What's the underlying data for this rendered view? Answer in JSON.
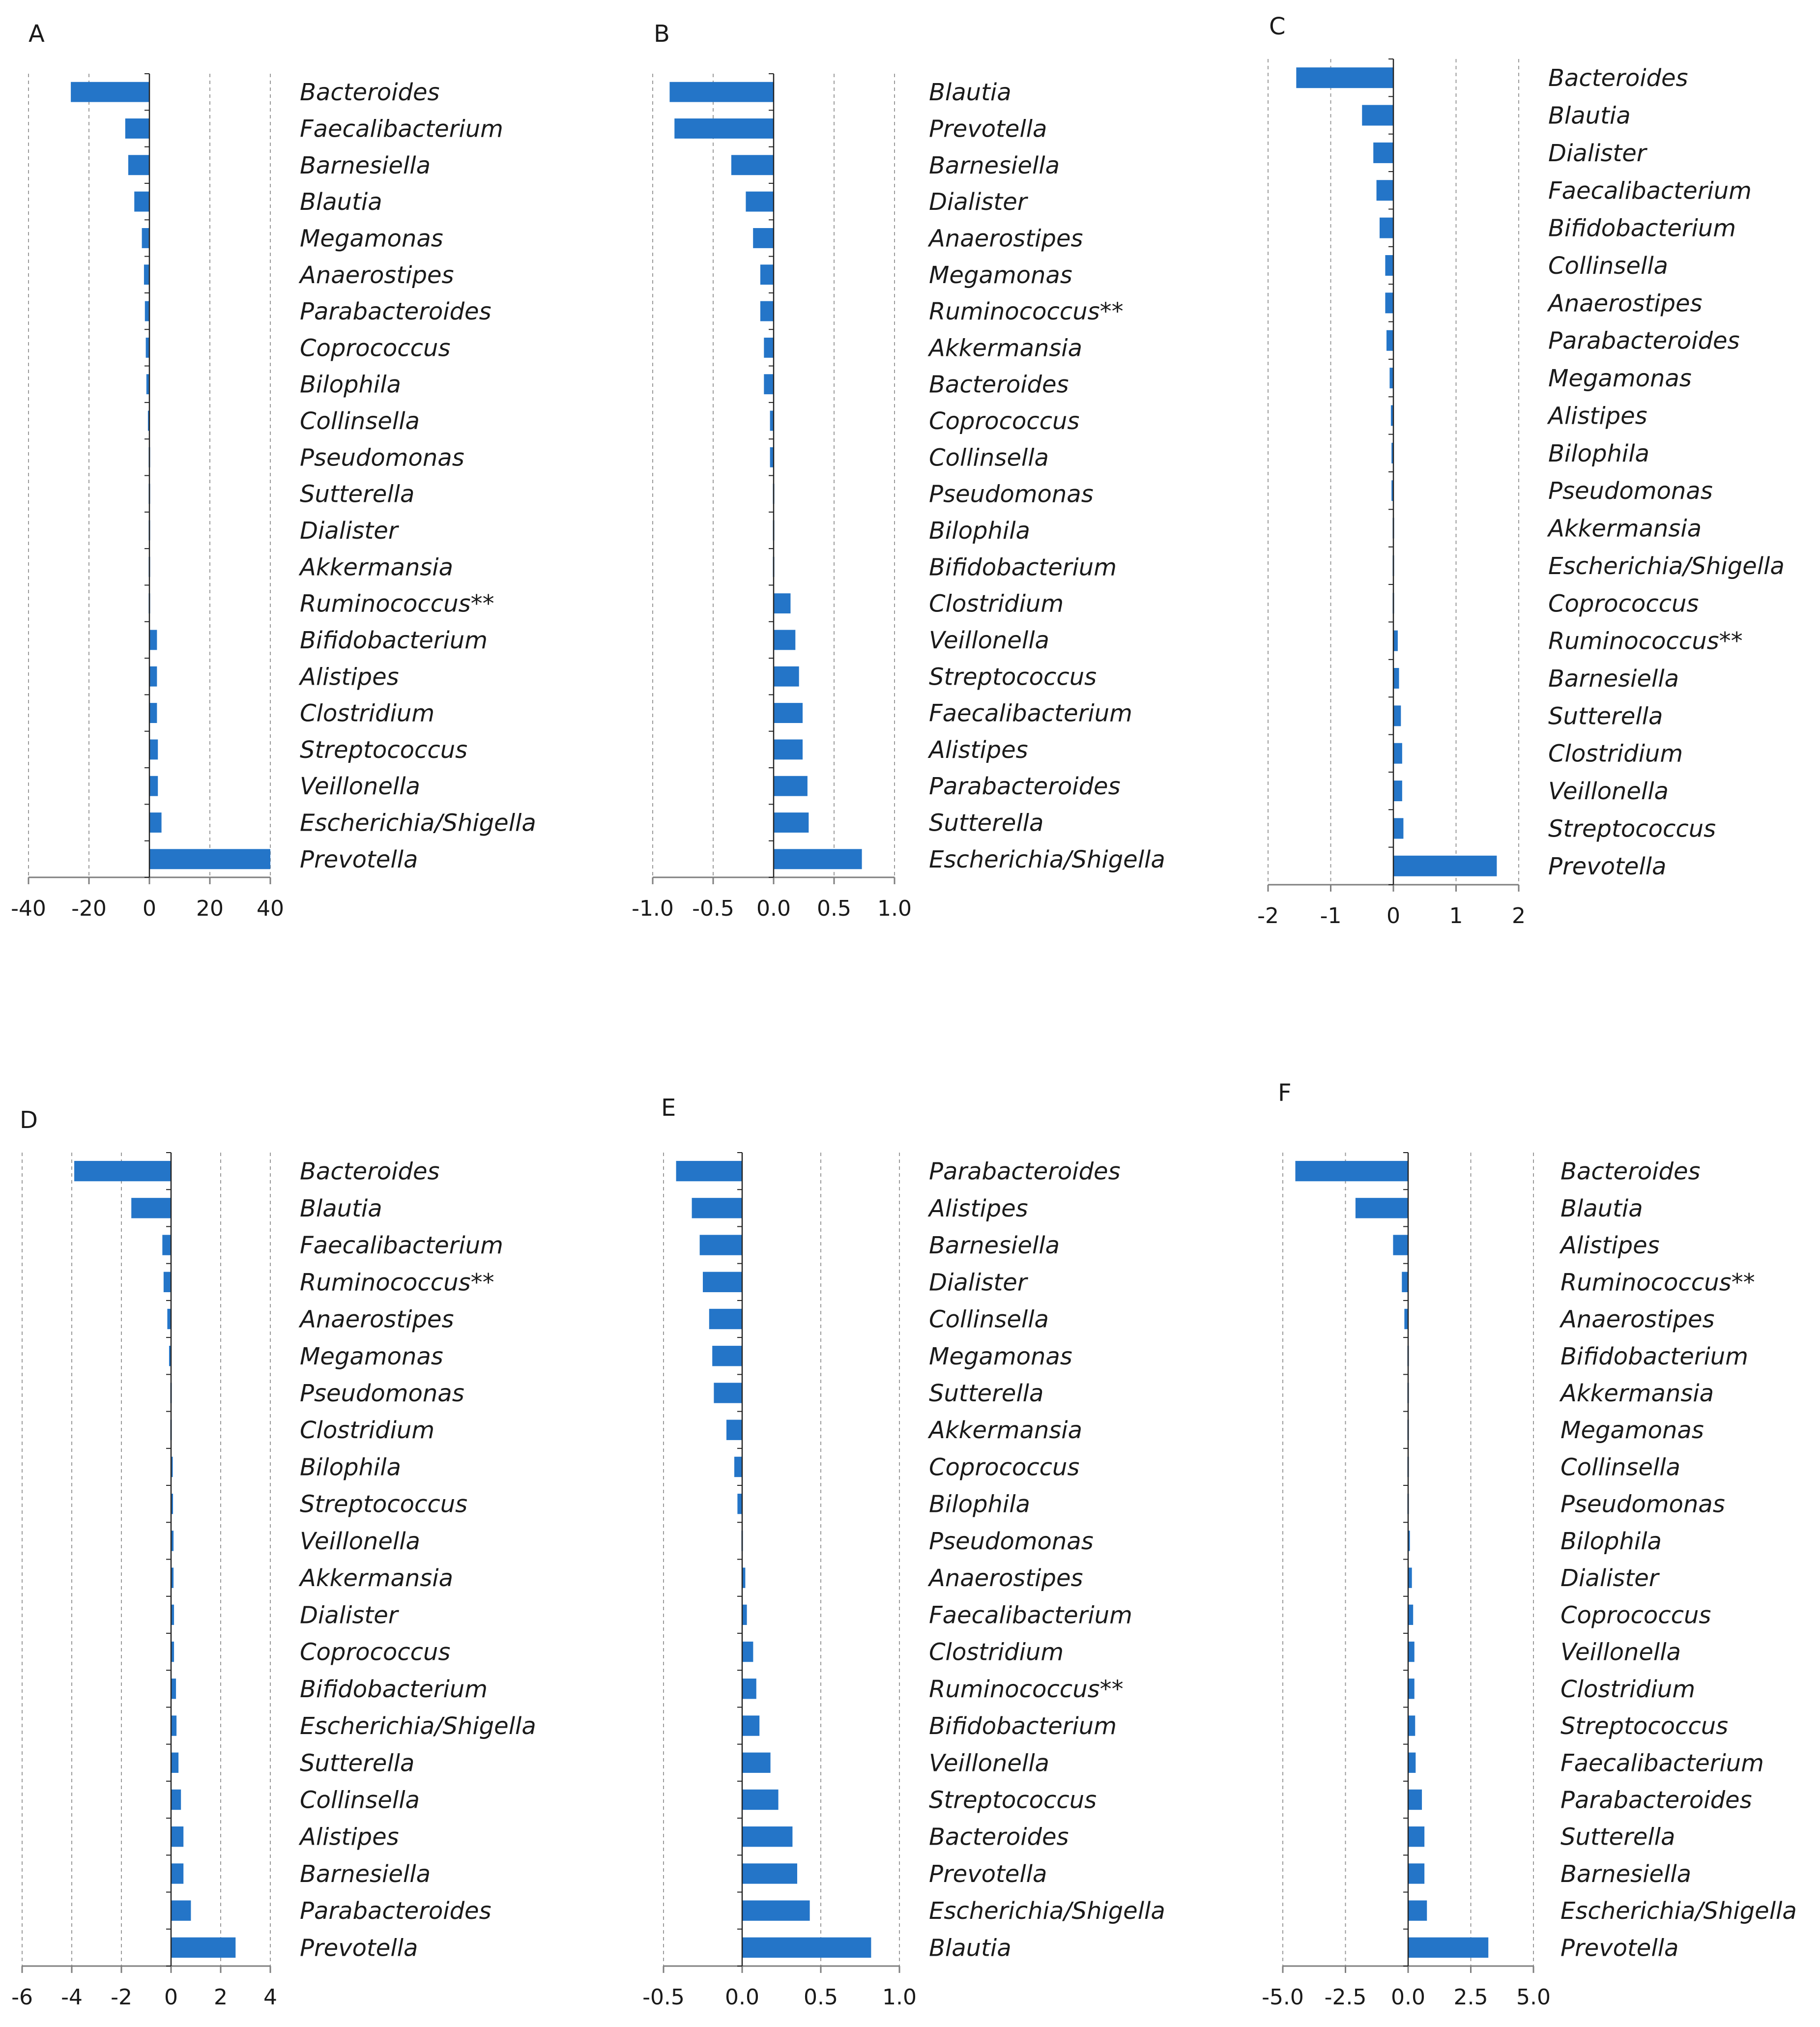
{
  "chart_data": [
    {
      "type": "bar",
      "panel": "A",
      "xlim": [
        -40,
        40
      ],
      "ticks": [
        -40,
        -20,
        0,
        20,
        40
      ],
      "tick_labels": [
        "-40",
        "-20",
        "0",
        "20",
        "40"
      ],
      "grid": true,
      "categories": [
        "Bacteroides",
        "Faecalibacterium",
        "Barnesiella",
        "Blautia",
        "Megamonas",
        "Anaerostipes",
        "Parabacteroides",
        "Coprococcus",
        "Bilophila",
        "Collinsella",
        "Pseudomonas",
        "Sutterella",
        "Dialister",
        "Akkermansia",
        "Ruminococcus**",
        "Bifidobacterium",
        "Alistipes",
        "Clostridium",
        "Streptococcus",
        "Veillonella",
        "Escherichia/Shigella",
        "Prevotella"
      ],
      "values": [
        -26,
        -8,
        -7,
        -5,
        -2.5,
        -1.8,
        -1.5,
        -1.2,
        -1.0,
        -0.5,
        0,
        0,
        0,
        0,
        0,
        2.5,
        2.5,
        2.5,
        2.8,
        2.8,
        4.0,
        40
      ]
    },
    {
      "type": "bar",
      "panel": "B",
      "xlim": [
        -1.0,
        1.0
      ],
      "ticks": [
        -1.0,
        -0.5,
        0.0,
        0.5,
        1.0
      ],
      "tick_labels": [
        "-1.0",
        "-0.5",
        "0.0",
        "0.5",
        "1.0"
      ],
      "grid": true,
      "categories": [
        "Blautia",
        "Prevotella",
        "Barnesiella",
        "Dialister",
        "Anaerostipes",
        "Megamonas",
        "Ruminococcus**",
        "Akkermansia",
        "Bacteroides",
        "Coprococcus",
        "Collinsella",
        "Pseudomonas",
        "Bilophila",
        "Bifidobacterium",
        "Clostridium",
        "Veillonella",
        "Streptococcus",
        "Faecalibacterium",
        "Alistipes",
        "Parabacteroides",
        "Sutterella",
        "Escherichia/Shigella"
      ],
      "values": [
        -0.86,
        -0.82,
        -0.35,
        -0.23,
        -0.17,
        -0.11,
        -0.11,
        -0.08,
        -0.08,
        -0.03,
        -0.03,
        -0.005,
        -0.005,
        -0.005,
        0.14,
        0.18,
        0.21,
        0.24,
        0.24,
        0.28,
        0.29,
        0.73
      ]
    },
    {
      "type": "bar",
      "panel": "C",
      "xlim": [
        -2,
        2
      ],
      "ticks": [
        -2,
        -1,
        0,
        1,
        2
      ],
      "tick_labels": [
        "-2",
        "-1",
        "0",
        "1",
        "2"
      ],
      "grid": true,
      "categories": [
        "Bacteroides",
        "Blautia",
        "Dialister",
        "Faecalibacterium",
        "Bifidobacterium",
        "Collinsella",
        "Anaerostipes",
        "Parabacteroides",
        "Megamonas",
        "Alistipes",
        "Bilophila",
        "Pseudomonas",
        "Akkermansia",
        "Escherichia/Shigella",
        "Coprococcus",
        "Ruminococcus**",
        "Barnesiella",
        "Sutterella",
        "Clostridium",
        "Veillonella",
        "Streptococcus",
        "Prevotella"
      ],
      "values": [
        -1.55,
        -0.5,
        -0.32,
        -0.27,
        -0.22,
        -0.13,
        -0.13,
        -0.11,
        -0.06,
        -0.04,
        -0.03,
        -0.03,
        0,
        0,
        0.02,
        0.07,
        0.09,
        0.12,
        0.14,
        0.14,
        0.16,
        1.65
      ]
    },
    {
      "type": "bar",
      "panel": "D",
      "xlim": [
        -6,
        4
      ],
      "ticks": [
        -6,
        -4,
        -2,
        0,
        2,
        4
      ],
      "tick_labels": [
        "-6",
        "-4",
        "-2",
        "0",
        "2",
        "4"
      ],
      "grid": true,
      "categories": [
        "Bacteroides",
        "Blautia",
        "Faecalibacterium",
        "Ruminococcus**",
        "Anaerostipes",
        "Megamonas",
        "Pseudomonas",
        "Clostridium",
        "Bilophila",
        "Streptococcus",
        "Veillonella",
        "Akkermansia",
        "Dialister",
        "Coprococcus",
        "Bifidobacterium",
        "Escherichia/Shigella",
        "Sutterella",
        "Collinsella",
        "Alistipes",
        "Barnesiella",
        "Parabacteroides",
        "Prevotella"
      ],
      "values": [
        -3.9,
        -1.6,
        -0.35,
        -0.3,
        -0.15,
        -0.08,
        0.05,
        0.05,
        0.07,
        0.08,
        0.1,
        0.1,
        0.12,
        0.12,
        0.2,
        0.22,
        0.3,
        0.4,
        0.5,
        0.5,
        0.8,
        2.6
      ]
    },
    {
      "type": "bar",
      "panel": "E",
      "xlim": [
        -0.5,
        1.0
      ],
      "ticks": [
        -0.5,
        0.0,
        0.5,
        1.0
      ],
      "tick_labels": [
        "-0.5",
        "0.0",
        "0.5",
        "1.0"
      ],
      "grid": true,
      "categories": [
        "Parabacteroides",
        "Alistipes",
        "Barnesiella",
        "Dialister",
        "Collinsella",
        "Megamonas",
        "Sutterella",
        "Akkermansia",
        "Coprococcus",
        "Bilophila",
        "Pseudomonas",
        "Anaerostipes",
        "Faecalibacterium",
        "Clostridium",
        "Ruminococcus**",
        "Bifidobacterium",
        "Veillonella",
        "Streptococcus",
        "Bacteroides",
        "Prevotella",
        "Escherichia/Shigella",
        "Blautia"
      ],
      "values": [
        -0.42,
        -0.32,
        -0.27,
        -0.25,
        -0.21,
        -0.19,
        -0.18,
        -0.1,
        -0.05,
        -0.03,
        0,
        0.02,
        0.03,
        0.07,
        0.09,
        0.11,
        0.18,
        0.23,
        0.32,
        0.35,
        0.43,
        0.82
      ]
    },
    {
      "type": "bar",
      "panel": "F",
      "xlim": [
        -5.0,
        5.0
      ],
      "ticks": [
        -5.0,
        -2.5,
        0.0,
        2.5,
        5.0
      ],
      "tick_labels": [
        "-5.0",
        "-2.5",
        "0.0",
        "2.5",
        "5.0"
      ],
      "grid": true,
      "categories": [
        "Bacteroides",
        "Blautia",
        "Alistipes",
        "Ruminococcus**",
        "Anaerostipes",
        "Bifidobacterium",
        "Akkermansia",
        "Megamonas",
        "Collinsella",
        "Pseudomonas",
        "Bilophila",
        "Dialister",
        "Coprococcus",
        "Veillonella",
        "Clostridium",
        "Streptococcus",
        "Faecalibacterium",
        "Parabacteroides",
        "Sutterella",
        "Barnesiella",
        "Escherichia/Shigella",
        "Prevotella"
      ],
      "values": [
        -4.5,
        -2.1,
        -0.6,
        -0.25,
        -0.15,
        0,
        0,
        0,
        0,
        0.05,
        0.07,
        0.15,
        0.2,
        0.25,
        0.25,
        0.28,
        0.3,
        0.55,
        0.65,
        0.65,
        0.75,
        3.2
      ]
    }
  ],
  "colors": {
    "bar": "#2475c8",
    "axis": "#7f7f7f",
    "grid": "#9a9a9a",
    "text": "#1a1a1a"
  }
}
